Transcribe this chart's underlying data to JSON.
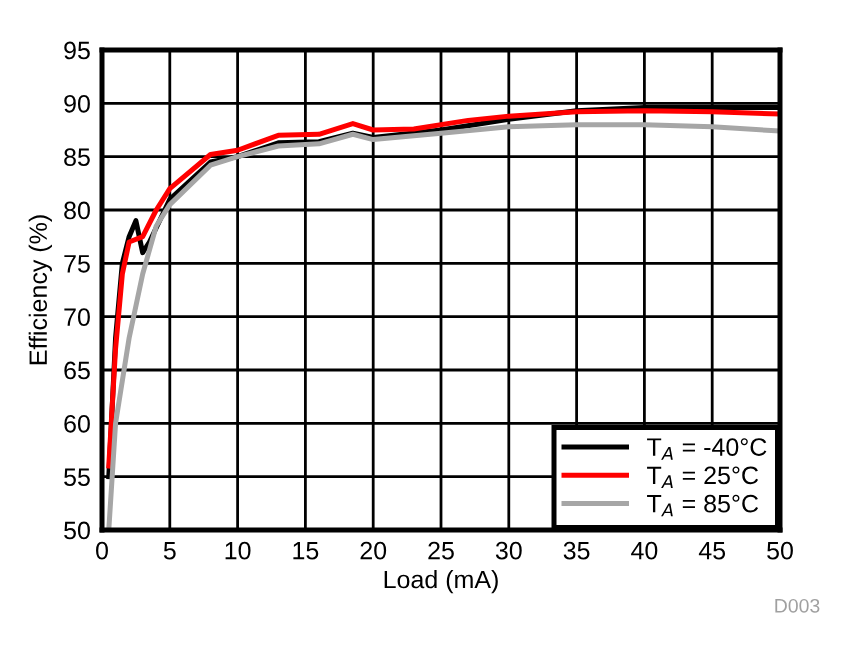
{
  "chart_data": {
    "type": "line",
    "xlabel": "Load (mA)",
    "ylabel": "Efficiency (%)",
    "xlim": [
      0,
      50
    ],
    "ylim": [
      50,
      95
    ],
    "xticks": [
      0,
      5,
      10,
      15,
      20,
      25,
      30,
      35,
      40,
      45,
      50
    ],
    "yticks": [
      50,
      55,
      60,
      65,
      70,
      75,
      80,
      85,
      90,
      95
    ],
    "grid": true,
    "legend": "bottom right",
    "marker": "none",
    "line_style": "solid",
    "annotations": [
      "D003"
    ],
    "series": [
      {
        "name": "T$_{A}$ = -40°C",
        "color": "#000000",
        "x": [
          0.5,
          1,
          1.5,
          2,
          2.5,
          3,
          3.5,
          5,
          8,
          10,
          13,
          16,
          18.5,
          20,
          25,
          30,
          35,
          40,
          45,
          50
        ],
        "values": [
          55,
          68,
          75,
          77.5,
          79,
          76,
          77,
          81,
          84.5,
          85,
          86.3,
          86.4,
          87.2,
          86.8,
          87.5,
          88.5,
          89.3,
          89.6,
          89.6,
          89.6
        ]
      },
      {
        "name": "T$_{A}$ = 25°C",
        "color": "#ff0000",
        "x": [
          0.5,
          1,
          1.5,
          2,
          3,
          4,
          5,
          8,
          10,
          13,
          16,
          18.5,
          20,
          23,
          27,
          30,
          35,
          40,
          45,
          50
        ],
        "values": [
          56,
          67,
          74,
          77,
          77.5,
          80,
          82,
          85.2,
          85.6,
          87,
          87.1,
          88.1,
          87.5,
          87.6,
          88.4,
          88.8,
          89.2,
          89.3,
          89.2,
          89.0
        ]
      },
      {
        "name": "T$_{A}$ = 85°C",
        "color": "#a6a6a6",
        "x": [
          0.5,
          1,
          2,
          3,
          4,
          5,
          8,
          10,
          13,
          16,
          18.5,
          20,
          25,
          30,
          35,
          40,
          45,
          50
        ],
        "values": [
          50,
          60,
          68,
          74,
          78.5,
          80.5,
          84.2,
          85,
          86,
          86.2,
          87.1,
          86.6,
          87.2,
          87.8,
          88,
          88,
          87.8,
          87.4
        ]
      }
    ]
  }
}
